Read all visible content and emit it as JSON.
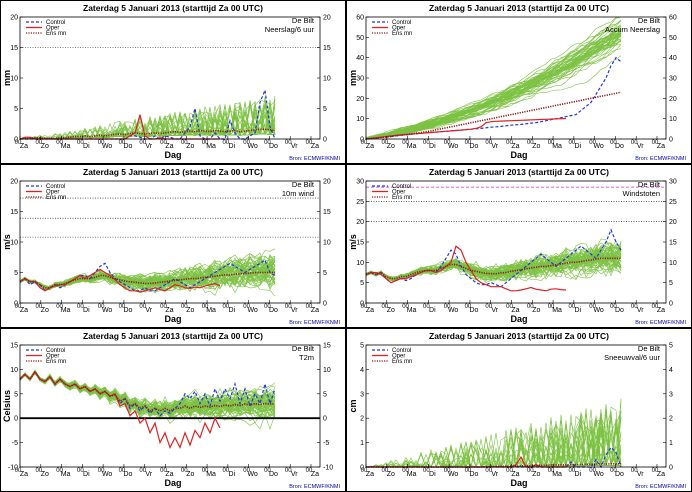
{
  "common": {
    "title": "Zaterdag 5 Januari 2013 (starttijd Za 00 UTC)",
    "station": "De Bilt",
    "xlabel": "Dag",
    "source": "Bron: ECMWF/KNMI",
    "legend": [
      "Control",
      "Oper",
      "Ens mn"
    ],
    "days": [
      "Za",
      "Zo",
      "Ma",
      "Di",
      "Wo",
      "Do",
      "Vr",
      "Za",
      "Zo",
      "Ma",
      "Di",
      "Wo",
      "Do",
      "Vr",
      "Za"
    ],
    "hour_label": "00"
  },
  "chart_data": [
    {
      "type": "line",
      "title": "Zaterdag 5 Januari 2013 (starttijd Za 00 UTC)",
      "variable": "Neerslag/6 uur",
      "ylabel": "mm",
      "ylim": [
        0,
        20
      ],
      "yticks": [
        0,
        5,
        10,
        15,
        20
      ],
      "dotted_lines": [
        15
      ],
      "members": 50,
      "series": [
        {
          "name": "Control",
          "color": "#2233dd",
          "style": "dashed",
          "values": [
            0,
            0,
            0,
            0,
            0,
            0,
            0,
            0,
            0,
            0,
            0,
            0,
            0,
            0,
            0,
            0,
            0,
            0,
            0,
            0,
            0,
            0,
            0.5,
            0.5,
            0.3,
            0,
            0,
            0.5,
            0,
            0.5,
            0.3,
            0,
            0,
            1,
            2,
            5,
            0.5,
            0,
            0,
            1,
            0,
            0,
            3,
            1,
            0,
            0,
            0.5,
            1,
            6,
            8,
            2,
            0
          ]
        },
        {
          "name": "Oper",
          "color": "#dd2222",
          "style": "solid",
          "values": [
            0,
            0.3,
            0.3,
            0,
            0,
            0,
            0,
            0,
            0,
            0,
            0,
            0,
            0,
            0,
            0,
            0,
            0,
            0,
            0,
            0,
            0,
            0,
            0.5,
            1,
            4,
            0.5,
            0,
            0,
            0.2,
            0,
            0,
            0,
            0,
            0,
            0,
            0,
            0,
            0,
            0,
            0,
            0
          ]
        },
        {
          "name": "Ens mn",
          "color": "#8b1a1a",
          "style": "dotted",
          "values": [
            0,
            0.1,
            0.1,
            0.2,
            0.2,
            0.1,
            0.1,
            0.1,
            0.2,
            0.2,
            0.3,
            0.4,
            0.4,
            0.5,
            0.4,
            0.5,
            0.6,
            0.5,
            0.6,
            0.8,
            0.8,
            0.7,
            0.9,
            1,
            0.9,
            0.8,
            0.9,
            1,
            0.9,
            1,
            1.1,
            1.2,
            1.1,
            1.2,
            1.3,
            1.2,
            1.4,
            1.3,
            1.2,
            1.4,
            1.3,
            1.2,
            1.3,
            1.4,
            1.2,
            1.3,
            1.4,
            1.5,
            1.6,
            1.6,
            1.5,
            1.4
          ]
        }
      ]
    },
    {
      "type": "line",
      "title": "Zaterdag 5 Januari 2013 (starttijd Za 00 UTC)",
      "variable": "Accum Neerslag",
      "ylabel": "mm",
      "ylim": [
        0,
        60
      ],
      "yticks": [
        0,
        10,
        20,
        30,
        40,
        50,
        60
      ],
      "dotted_lines": [],
      "members": 50,
      "series": [
        {
          "name": "Control",
          "color": "#2233dd",
          "style": "dashed",
          "values": [
            0,
            0.2,
            0.5,
            0.8,
            1,
            1.2,
            1.5,
            1.8,
            2,
            2.3,
            2.5,
            2.8,
            3,
            3.2,
            3.4,
            3.6,
            3.8,
            4,
            4.2,
            4.4,
            4.6,
            4.8,
            5,
            5.2,
            5.5,
            5.8,
            6,
            6.2,
            6.5,
            6.8,
            7,
            7.2,
            7.5,
            7.8,
            8,
            8.5,
            9,
            9.5,
            10,
            10.5,
            11,
            11.5,
            12,
            14,
            16,
            18,
            22,
            26,
            30,
            36,
            40,
            38
          ]
        },
        {
          "name": "Oper",
          "color": "#dd2222",
          "style": "solid",
          "values": [
            0,
            0.3,
            0.6,
            0.9,
            1.2,
            1.5,
            1.8,
            2,
            2.2,
            2.4,
            2.6,
            2.8,
            3,
            3.2,
            3.4,
            3.6,
            3.8,
            4,
            4.2,
            4.4,
            4.6,
            4.8,
            5.2,
            6,
            8,
            8.5,
            8.7,
            8.8,
            8.9,
            9,
            9.1,
            9.2,
            9.3,
            9.4,
            9.5,
            9.6,
            9.7,
            9.8,
            9.9,
            10,
            10.1
          ]
        },
        {
          "name": "Ens mn",
          "color": "#8b1a1a",
          "style": "dotted",
          "values": [
            0,
            0.2,
            0.5,
            0.8,
            1,
            1.3,
            1.6,
            1.9,
            2.2,
            2.5,
            2.8,
            3.2,
            3.6,
            4,
            4.5,
            5,
            5.5,
            6,
            6.5,
            7,
            7.5,
            8,
            8.5,
            9,
            9.5,
            10,
            10.5,
            11,
            11.5,
            12,
            12.5,
            13,
            13.5,
            14,
            14.5,
            15,
            15.5,
            16,
            16.5,
            17,
            17.5,
            18,
            18.5,
            19,
            19.5,
            20,
            20.5,
            21,
            21.5,
            22,
            22.5,
            23
          ]
        }
      ]
    },
    {
      "type": "line",
      "title": "Zaterdag 5 Januari 2013 (starttijd Za 00 UTC)",
      "variable": "10m wind",
      "ylabel": "m/s",
      "ylim": [
        0,
        20
      ],
      "yticks": [
        0,
        5,
        10,
        15,
        20
      ],
      "dotted_lines": [
        10.8,
        13.9,
        17.2
      ],
      "members": 50,
      "series": [
        {
          "name": "Control",
          "color": "#2233dd",
          "style": "dashed",
          "values": [
            3.5,
            4,
            3,
            3.5,
            3,
            2,
            2.5,
            3,
            2.5,
            3,
            3.5,
            4,
            4.5,
            4.5,
            4,
            5,
            6,
            6.5,
            5,
            4,
            3.5,
            3,
            2.5,
            2,
            2,
            2.5,
            2,
            2,
            2.5,
            3,
            3.5,
            4,
            3.5,
            3,
            2.5,
            3,
            3.5,
            4,
            4.5,
            5,
            5.5,
            6,
            6.5,
            6,
            5.5,
            5,
            5.5,
            6,
            6.5,
            7,
            5,
            4.5
          ]
        },
        {
          "name": "Oper",
          "color": "#dd2222",
          "style": "solid",
          "values": [
            3.5,
            4,
            3.5,
            3.5,
            2.5,
            2,
            2.5,
            2.8,
            3,
            3,
            3.5,
            4,
            4.5,
            4,
            4.5,
            5,
            5.5,
            5,
            4.5,
            3.8,
            3,
            2.5,
            2,
            2,
            1.8,
            2,
            2.2,
            2.5,
            2.2,
            2,
            2.5,
            3,
            2.8,
            2.5,
            2.4,
            2.6,
            2.5,
            2.8,
            3,
            3.2,
            2.8
          ]
        },
        {
          "name": "Ens mn",
          "color": "#8b1a1a",
          "style": "dotted",
          "values": [
            3.5,
            4,
            3.5,
            3.5,
            3,
            2.5,
            2.5,
            3,
            3,
            3.2,
            3.5,
            3.8,
            4,
            4,
            4,
            4.2,
            4.5,
            4.5,
            4.2,
            4,
            3.8,
            3.6,
            3.5,
            3.4,
            3.3,
            3.2,
            3.2,
            3.3,
            3.4,
            3.5,
            3.6,
            3.7,
            3.8,
            3.9,
            4,
            4,
            4.1,
            4.2,
            4.3,
            4.4,
            4.5,
            4.6,
            4.6,
            4.7,
            4.8,
            4.8,
            4.9,
            5,
            5,
            5,
            5,
            5
          ]
        }
      ]
    },
    {
      "type": "line",
      "title": "Zaterdag 5 Januari 2013 (starttijd Za 00 UTC)",
      "variable": "Windstoten",
      "ylabel": "m/s",
      "ylim": [
        0,
        30
      ],
      "yticks": [
        0,
        5,
        10,
        15,
        20,
        25,
        30
      ],
      "dotted_lines": [
        20,
        25
      ],
      "magenta_line": 28.5,
      "members": 50,
      "series": [
        {
          "name": "Control",
          "color": "#2233dd",
          "style": "dashed",
          "values": [
            7,
            7.5,
            7,
            7.5,
            6,
            5,
            5.5,
            6,
            5.5,
            6,
            7,
            7.5,
            8,
            8,
            7.5,
            9,
            11,
            13,
            12,
            9,
            7,
            6,
            5,
            4.5,
            4.5,
            5,
            4.5,
            4,
            5,
            6,
            7,
            8,
            9,
            10,
            11,
            12,
            11,
            10,
            9,
            10,
            11,
            12,
            13,
            14,
            13,
            12,
            11,
            13,
            15,
            18,
            15,
            13
          ]
        },
        {
          "name": "Oper",
          "color": "#dd2222",
          "style": "solid",
          "values": [
            7,
            7.5,
            7.5,
            7,
            6,
            5,
            5.5,
            6,
            6,
            6.5,
            7,
            7.5,
            8,
            8,
            7.5,
            8,
            9,
            10,
            14,
            13,
            10,
            8,
            6,
            5,
            4.5,
            4,
            4,
            4,
            3.5,
            3,
            3,
            3.2,
            3.5,
            3.8,
            3.4,
            3.2,
            3,
            3.4,
            3.5,
            3.3,
            3.2
          ]
        },
        {
          "name": "Ens mn",
          "color": "#8b1a1a",
          "style": "dotted",
          "values": [
            7,
            7.5,
            7,
            7.5,
            6.5,
            6,
            6,
            6.5,
            6.5,
            7,
            7.5,
            7.8,
            8,
            8,
            8,
            8.5,
            9,
            9.5,
            9.5,
            9,
            8.5,
            8,
            7.8,
            7.5,
            7.3,
            7.2,
            7.2,
            7.4,
            7.5,
            7.8,
            8,
            8.2,
            8.4,
            8.6,
            8.8,
            9,
            9,
            9.2,
            9.4,
            9.6,
            9.8,
            10,
            10,
            10.2,
            10.4,
            10.6,
            10.8,
            11,
            11,
            11,
            11,
            11
          ]
        }
      ]
    },
    {
      "type": "line",
      "title": "Zaterdag 5 Januari 2013 (starttijd Za 00 UTC)",
      "variable": "T2m",
      "ylabel": "Celsius",
      "ylim": [
        -10,
        15
      ],
      "yticks": [
        -10,
        -5,
        0,
        5,
        10,
        15
      ],
      "dotted_lines": [],
      "zero_line": true,
      "members": 50,
      "series": [
        {
          "name": "Control",
          "color": "#2233dd",
          "style": "dashed",
          "values": [
            8,
            9,
            8,
            9.5,
            8,
            7.5,
            8.5,
            7,
            8,
            7,
            6.5,
            7,
            6,
            6.5,
            5.5,
            6,
            5,
            5.5,
            4.5,
            5,
            3,
            4,
            2,
            3,
            1.5,
            2.5,
            1,
            2,
            0.5,
            1.5,
            1,
            2,
            3,
            5,
            4,
            5.5,
            3,
            5,
            2.5,
            6,
            3.5,
            6,
            4,
            7,
            3,
            6,
            2.5,
            5,
            3,
            7,
            3,
            6
          ]
        },
        {
          "name": "Oper",
          "color": "#dd2222",
          "style": "solid",
          "values": [
            8,
            9,
            8,
            9.5,
            8,
            7.5,
            8.5,
            7,
            8,
            7,
            6.5,
            7,
            6,
            6.5,
            5.5,
            6,
            5,
            5.5,
            4.5,
            5,
            2.5,
            3,
            0.5,
            1.5,
            -1,
            0,
            -3,
            -1,
            -5,
            -3,
            -6,
            -4,
            -6,
            -3,
            -5.5,
            -2.5,
            -4,
            -1,
            -3,
            0,
            -2
          ]
        },
        {
          "name": "Ens mn",
          "color": "#8b1a1a",
          "style": "dotted",
          "values": [
            8,
            9,
            8,
            9.5,
            8,
            7.5,
            8.5,
            7,
            8,
            7,
            6.5,
            7,
            6,
            6.5,
            5.5,
            6,
            5,
            5.5,
            4.5,
            4.8,
            3.5,
            4,
            2.5,
            3,
            2,
            2.5,
            1.5,
            2,
            1.5,
            2,
            1.5,
            2,
            2,
            2.5,
            2,
            2.5,
            2.2,
            2.5,
            2.3,
            2.6,
            2.4,
            2.7,
            2.5,
            2.8,
            2.6,
            2.9,
            2.7,
            3,
            2.8,
            3,
            2.9,
            3
          ]
        }
      ]
    },
    {
      "type": "line",
      "title": "Zaterdag 5 Januari 2013 (starttijd Za 00 UTC)",
      "variable": "Sneeuwval/6 uur",
      "ylabel": "cm",
      "ylim": [
        0,
        5
      ],
      "yticks": [
        0,
        1,
        2,
        3,
        4,
        5
      ],
      "dotted_lines": [],
      "members": 50,
      "series": [
        {
          "name": "Control",
          "color": "#2233dd",
          "style": "dashed",
          "values": [
            0,
            0,
            0,
            0,
            0,
            0,
            0,
            0,
            0,
            0,
            0,
            0,
            0,
            0,
            0,
            0,
            0,
            0,
            0,
            0,
            0,
            0,
            0,
            0,
            0,
            0,
            0,
            0,
            0,
            0,
            0,
            0,
            0,
            0,
            0,
            0,
            0,
            0,
            0,
            0,
            0,
            0.2,
            0,
            0,
            0,
            0,
            0.3,
            0,
            0.5,
            0.8,
            0.6,
            0
          ]
        },
        {
          "name": "Oper",
          "color": "#dd2222",
          "style": "solid",
          "values": [
            0,
            0,
            0,
            0,
            0,
            0,
            0,
            0,
            0,
            0,
            0,
            0,
            0,
            0,
            0,
            0,
            0,
            0,
            0,
            0,
            0,
            0,
            0,
            0,
            0,
            0,
            0,
            0,
            0,
            0,
            0.1,
            0.4,
            0,
            0,
            0.1,
            0,
            0,
            0,
            0,
            0,
            0
          ]
        },
        {
          "name": "Ens mn",
          "color": "#8b1a1a",
          "style": "dotted",
          "values": [
            0,
            0,
            0,
            0,
            0,
            0,
            0,
            0,
            0,
            0,
            0,
            0,
            0,
            0,
            0,
            0,
            0,
            0,
            0,
            0,
            0,
            0,
            0,
            0,
            0.01,
            0.02,
            0.02,
            0.03,
            0.03,
            0.04,
            0.04,
            0.05,
            0.05,
            0.06,
            0.06,
            0.07,
            0.07,
            0.08,
            0.08,
            0.09,
            0.09,
            0.1,
            0.1,
            0.1,
            0.11,
            0.11,
            0.12,
            0.12,
            0.12,
            0.13,
            0.13,
            0.13
          ]
        }
      ]
    }
  ]
}
